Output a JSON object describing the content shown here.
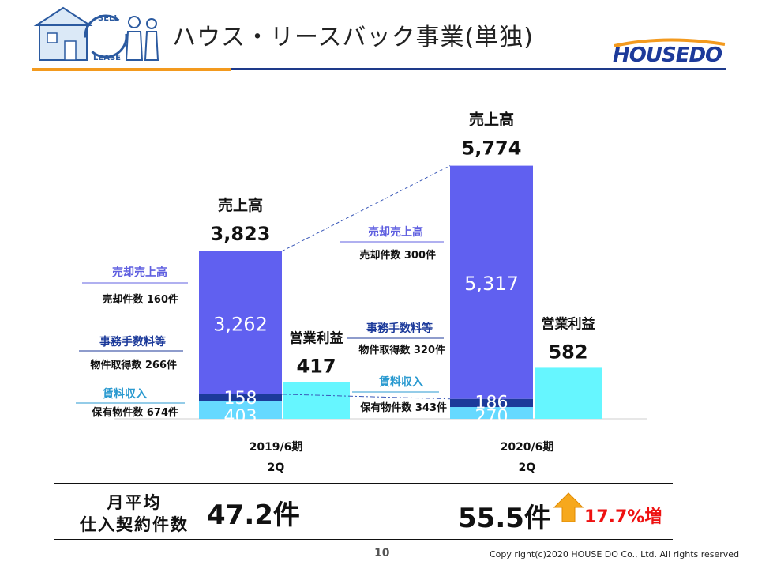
{
  "header": {
    "title": "ハウス・リースバック事業(単独)",
    "logo_text": "HOUSEDO",
    "illustration_labels": [
      "SELL",
      "LEASE"
    ]
  },
  "chart_data": {
    "type": "bar",
    "stacked": true,
    "categories": [
      "2019/6期\n2Q",
      "2020/6期\n2Q"
    ],
    "category_lines": [
      [
        "2019/6期",
        "2Q"
      ],
      [
        "2020/6期",
        "2Q"
      ]
    ],
    "series": [
      {
        "name": "売却売上高",
        "values": [
          3262,
          5317
        ],
        "color": "#6060f0"
      },
      {
        "name": "事務手数料等",
        "values": [
          158,
          186
        ],
        "color": "#1c3a9a"
      },
      {
        "name": "賃料収入",
        "values": [
          403,
          270
        ],
        "color": "#66d9ff"
      }
    ],
    "totals": {
      "label": "売上高",
      "values": [
        "3,823",
        "5,774"
      ]
    },
    "operating_profit": {
      "label": "営業利益",
      "values": [
        417,
        582
      ],
      "value_labels": [
        "417",
        "582"
      ],
      "color": "#66f6ff"
    },
    "segment_labels": {
      "period1": {
        "sales": "3,262",
        "fee": "158",
        "rent": "403"
      },
      "period2": {
        "sales": "5,317",
        "fee": "186",
        "rent": "270"
      }
    },
    "annotations": {
      "period1": {
        "sales_title": "売却売上高",
        "sales_detail": "売却件数 160件",
        "fee_title": "事務手数料等",
        "fee_detail": "物件取得数 266件",
        "rent_title": "賃料収入",
        "rent_detail": "保有物件数 674件"
      },
      "period2": {
        "sales_title": "売却売上高",
        "sales_detail": "売却件数 300件",
        "fee_title": "事務手数料等",
        "fee_detail": "物件取得数 320件",
        "rent_title": "賃料収入",
        "rent_detail": "保有物件数 343件"
      }
    },
    "ylim": [
      0,
      6000
    ]
  },
  "summary": {
    "label_line1": "月平均",
    "label_line2": "仕入契約件数",
    "value_2019": "47.2件",
    "value_2020": "55.5件",
    "growth": "17.7%増"
  },
  "footer": {
    "page_number": "10",
    "copyright": "Copy right(c)2020 HOUSE DO Co., Ltd. All rights reserved"
  },
  "colors": {
    "sales": "#6060f0",
    "fee": "#1c3a9a",
    "rent": "#66d9ff",
    "profit": "#66f6ff",
    "accent_orange": "#f39a1e",
    "growth_red": "#e11111"
  }
}
